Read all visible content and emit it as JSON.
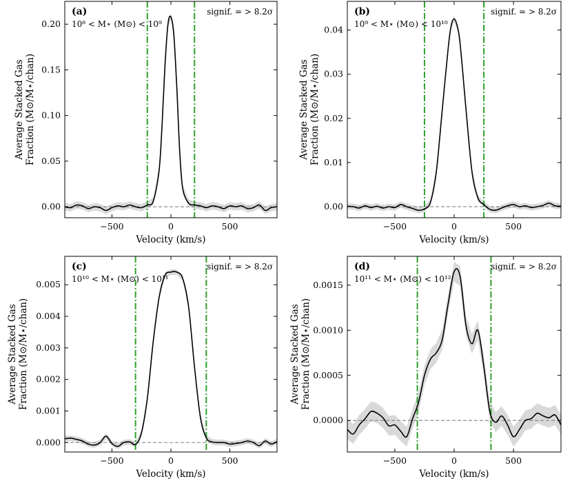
{
  "figure": {
    "common": {
      "xlabel": "Velocity (km/s)",
      "ylabel_line1": "Average Stacked Gas",
      "ylabel_line2": "Fraction (M⊙/M⋆/chan)",
      "signif_text": "signif. = > 8.2σ",
      "xlim": [
        -900,
        900
      ],
      "xticks": [
        -500,
        0,
        500
      ],
      "xtick_labels": [
        "−500",
        "0",
        "500"
      ],
      "colors": {
        "line": "#000000",
        "band": "#d9d9d9",
        "window": "#2ca02c",
        "zero": "#808080"
      }
    }
  },
  "chart_data": [
    {
      "type": "line",
      "panel": "(a)",
      "mass_bin": "10⁸ < M⋆ (M⊙) < 10⁹",
      "ylim": [
        -0.012,
        0.225
      ],
      "yticks": [
        0,
        0.05,
        0.1,
        0.15,
        0.2
      ],
      "ytick_labels": [
        "0.00",
        "0.05",
        "0.10",
        "0.15",
        "0.20"
      ],
      "window_km_s": [
        -200,
        200
      ],
      "series": [
        {
          "name": "stack",
          "x": [
            -900,
            -850,
            -800,
            -750,
            -700,
            -650,
            -600,
            -550,
            -500,
            -450,
            -400,
            -350,
            -300,
            -250,
            -200,
            -150,
            -100,
            -75,
            -50,
            -25,
            0,
            25,
            50,
            75,
            100,
            150,
            200,
            250,
            300,
            350,
            400,
            450,
            500,
            550,
            600,
            650,
            700,
            750,
            800,
            850,
            900
          ],
          "y": [
            0.0,
            -0.001,
            0.002,
            0.001,
            -0.002,
            0.0,
            -0.001,
            -0.004,
            -0.001,
            0.001,
            0.0,
            0.002,
            0.0,
            -0.001,
            0.002,
            0.006,
            0.04,
            0.09,
            0.155,
            0.2,
            0.208,
            0.188,
            0.13,
            0.06,
            0.02,
            0.004,
            0.002,
            0.001,
            -0.001,
            0.001,
            0.0,
            -0.002,
            0.001,
            0.0,
            0.001,
            -0.002,
            -0.001,
            0.002,
            -0.004,
            -0.001,
            0.0
          ],
          "err": 0.004
        }
      ]
    },
    {
      "type": "line",
      "panel": "(b)",
      "mass_bin": "10⁹ < M⋆ (M⊙) < 10¹⁰",
      "ylim": [
        -0.0025,
        0.0465
      ],
      "yticks": [
        0,
        0.01,
        0.02,
        0.03,
        0.04
      ],
      "ytick_labels": [
        "0.00",
        "0.01",
        "0.02",
        "0.03",
        "0.04"
      ],
      "window_km_s": [
        -250,
        250
      ],
      "series": [
        {
          "name": "stack",
          "x": [
            -900,
            -850,
            -800,
            -750,
            -700,
            -650,
            -600,
            -550,
            -500,
            -450,
            -400,
            -350,
            -300,
            -250,
            -200,
            -150,
            -100,
            -50,
            -25,
            0,
            25,
            50,
            100,
            150,
            200,
            250,
            300,
            350,
            400,
            450,
            500,
            550,
            600,
            650,
            700,
            750,
            800,
            850,
            900
          ],
          "y": [
            0.0001,
            0.0,
            -0.0003,
            0.0002,
            -0.0002,
            0.0001,
            -0.0003,
            0.0,
            -0.0002,
            0.0005,
            0.0,
            -0.0004,
            -0.0008,
            -0.0005,
            0.001,
            0.008,
            0.022,
            0.036,
            0.041,
            0.0425,
            0.041,
            0.037,
            0.022,
            0.008,
            0.002,
            0.0005,
            -0.0006,
            -0.0008,
            -0.0003,
            0.0002,
            0.0005,
            0.0,
            0.0002,
            -0.0002,
            0.0,
            0.0003,
            0.0008,
            0.0002,
            0.0001
          ],
          "err": 0.0007
        }
      ]
    },
    {
      "type": "line",
      "panel": "(c)",
      "mass_bin": "10¹⁰ < M⋆ (M⊙) < 10¹¹",
      "ylim": [
        -0.0003,
        0.0059
      ],
      "yticks": [
        0,
        0.001,
        0.002,
        0.003,
        0.004,
        0.005
      ],
      "ytick_labels": [
        "0.000",
        "0.001",
        "0.002",
        "0.003",
        "0.004",
        "0.005"
      ],
      "window_km_s": [
        -300,
        300
      ],
      "series": [
        {
          "name": "stack",
          "x": [
            -900,
            -850,
            -800,
            -750,
            -700,
            -650,
            -600,
            -550,
            -500,
            -450,
            -400,
            -350,
            -300,
            -250,
            -200,
            -150,
            -100,
            -50,
            0,
            50,
            100,
            150,
            200,
            250,
            300,
            350,
            400,
            450,
            500,
            550,
            600,
            650,
            700,
            750,
            800,
            850,
            900
          ],
          "y": [
            0.00012,
            0.00014,
            0.0001,
            5e-05,
            -5e-05,
            -8e-05,
            0.0,
            0.0002,
            -3e-05,
            -0.00012,
            0.0,
            2e-05,
            -6e-05,
            0.0003,
            0.0014,
            0.0032,
            0.0046,
            0.0053,
            0.0054,
            0.0054,
            0.0052,
            0.0043,
            0.0024,
            0.0008,
            0.00015,
            2e-05,
            0.0,
            0.0,
            -5e-05,
            -3e-05,
            0.0,
            5e-05,
            0.0,
            -0.0001,
            5e-05,
            -5e-05,
            3e-05
          ],
          "err": 9e-05
        }
      ]
    },
    {
      "type": "line",
      "panel": "(d)",
      "mass_bin": "10¹¹ < M⋆ (M⊙) < 10¹²",
      "ylim": [
        -0.00035,
        0.00182
      ],
      "yticks": [
        0,
        0.0005,
        0.001,
        0.0015
      ],
      "ytick_labels": [
        "0.0000",
        "0.0005",
        "0.0010",
        "0.0015"
      ],
      "window_km_s": [
        -310,
        310
      ],
      "series": [
        {
          "name": "stack",
          "x": [
            -900,
            -850,
            -800,
            -750,
            -700,
            -650,
            -600,
            -550,
            -500,
            -450,
            -400,
            -350,
            -300,
            -250,
            -200,
            -150,
            -100,
            -50,
            0,
            50,
            100,
            150,
            200,
            250,
            300,
            350,
            400,
            450,
            500,
            550,
            600,
            650,
            700,
            750,
            800,
            850,
            900
          ],
          "y": [
            -0.0001,
            -0.00015,
            -5e-05,
            2e-05,
            0.0001,
            8e-05,
            3e-05,
            -6e-05,
            -5e-05,
            -0.00012,
            -0.00018,
            2e-05,
            0.0002,
            0.0005,
            0.00068,
            0.00075,
            0.0009,
            0.0013,
            0.00165,
            0.0016,
            0.00105,
            0.00085,
            0.001,
            0.0006,
            0.0001,
            -2e-05,
            5e-05,
            -5e-05,
            -0.00018,
            -0.0001,
            0.0,
            2e-05,
            8e-05,
            5e-05,
            3e-05,
            6e-05,
            -5e-05
          ],
          "err": 0.00011
        }
      ]
    }
  ]
}
